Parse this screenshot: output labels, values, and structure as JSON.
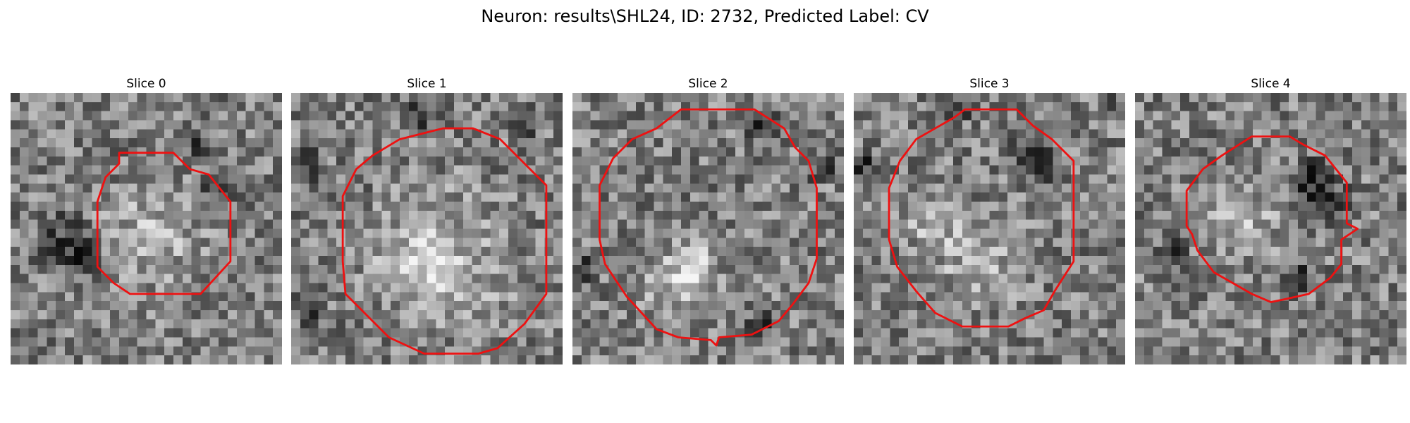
{
  "figure": {
    "suptitle": "Neuron: results\\SHL24, ID: 2732, Predicted Label: CV",
    "contour_color": "#ee1111",
    "colormap": "gray"
  },
  "panels": [
    {
      "title": "Slice 0",
      "seed": 11,
      "contour": [
        [
          0.4,
          0.22
        ],
        [
          0.6,
          0.22
        ],
        [
          0.66,
          0.28
        ],
        [
          0.73,
          0.3
        ],
        [
          0.81,
          0.4
        ],
        [
          0.81,
          0.62
        ],
        [
          0.7,
          0.74
        ],
        [
          0.44,
          0.74
        ],
        [
          0.38,
          0.7
        ],
        [
          0.32,
          0.64
        ],
        [
          0.32,
          0.4
        ],
        [
          0.35,
          0.31
        ],
        [
          0.4,
          0.26
        ]
      ],
      "dark": [
        [
          0.2,
          0.55,
          0.09
        ],
        [
          0.28,
          0.62,
          0.06
        ],
        [
          0.7,
          0.2,
          0.05
        ],
        [
          0.76,
          0.34,
          0.05
        ]
      ],
      "bright": [
        [
          0.52,
          0.52,
          0.18
        ]
      ]
    },
    {
      "title": "Slice 1",
      "seed": 23,
      "contour": [
        [
          0.4,
          0.17
        ],
        [
          0.56,
          0.13
        ],
        [
          0.67,
          0.13
        ],
        [
          0.77,
          0.17
        ],
        [
          0.87,
          0.27
        ],
        [
          0.94,
          0.34
        ],
        [
          0.94,
          0.74
        ],
        [
          0.86,
          0.85
        ],
        [
          0.76,
          0.94
        ],
        [
          0.69,
          0.96
        ],
        [
          0.49,
          0.96
        ],
        [
          0.36,
          0.9
        ],
        [
          0.28,
          0.82
        ],
        [
          0.2,
          0.74
        ],
        [
          0.19,
          0.62
        ],
        [
          0.19,
          0.38
        ],
        [
          0.24,
          0.28
        ],
        [
          0.3,
          0.23
        ]
      ],
      "dark": [
        [
          0.06,
          0.25,
          0.06
        ],
        [
          0.48,
          0.08,
          0.05
        ],
        [
          0.87,
          0.1,
          0.05
        ],
        [
          0.06,
          0.78,
          0.06
        ]
      ],
      "bright": [
        [
          0.56,
          0.6,
          0.26
        ],
        [
          0.46,
          0.64,
          0.12
        ]
      ]
    },
    {
      "title": "Slice 2",
      "seed": 37,
      "contour": [
        [
          0.4,
          0.06
        ],
        [
          0.67,
          0.06
        ],
        [
          0.78,
          0.13
        ],
        [
          0.82,
          0.2
        ],
        [
          0.87,
          0.25
        ],
        [
          0.9,
          0.35
        ],
        [
          0.9,
          0.61
        ],
        [
          0.87,
          0.7
        ],
        [
          0.81,
          0.78
        ],
        [
          0.76,
          0.84
        ],
        [
          0.66,
          0.89
        ],
        [
          0.54,
          0.9
        ],
        [
          0.53,
          0.93
        ],
        [
          0.51,
          0.91
        ],
        [
          0.39,
          0.9
        ],
        [
          0.31,
          0.87
        ],
        [
          0.2,
          0.75
        ],
        [
          0.12,
          0.63
        ],
        [
          0.1,
          0.54
        ],
        [
          0.1,
          0.34
        ],
        [
          0.15,
          0.24
        ],
        [
          0.22,
          0.17
        ],
        [
          0.31,
          0.13
        ]
      ],
      "dark": [
        [
          0.05,
          0.64,
          0.05
        ],
        [
          0.7,
          0.12,
          0.05
        ],
        [
          0.92,
          0.27,
          0.05
        ],
        [
          0.7,
          0.84,
          0.05
        ]
      ],
      "bright": [
        [
          0.4,
          0.7,
          0.16
        ],
        [
          0.44,
          0.64,
          0.08
        ]
      ]
    },
    {
      "title": "Slice 3",
      "seed": 53,
      "contour": [
        [
          0.41,
          0.06
        ],
        [
          0.6,
          0.06
        ],
        [
          0.66,
          0.12
        ],
        [
          0.73,
          0.17
        ],
        [
          0.81,
          0.25
        ],
        [
          0.81,
          0.62
        ],
        [
          0.74,
          0.73
        ],
        [
          0.7,
          0.8
        ],
        [
          0.63,
          0.83
        ],
        [
          0.57,
          0.86
        ],
        [
          0.4,
          0.86
        ],
        [
          0.3,
          0.81
        ],
        [
          0.23,
          0.73
        ],
        [
          0.16,
          0.64
        ],
        [
          0.13,
          0.54
        ],
        [
          0.13,
          0.35
        ],
        [
          0.17,
          0.25
        ],
        [
          0.23,
          0.17
        ],
        [
          0.3,
          0.13
        ],
        [
          0.37,
          0.09
        ]
      ],
      "dark": [
        [
          0.04,
          0.27,
          0.05
        ],
        [
          0.66,
          0.25,
          0.08
        ],
        [
          0.95,
          0.05,
          0.04
        ],
        [
          0.38,
          0.06,
          0.05
        ]
      ],
      "bright": [
        [
          0.45,
          0.62,
          0.16
        ],
        [
          0.28,
          0.48,
          0.1
        ]
      ]
    },
    {
      "title": "Slice 4",
      "seed": 71,
      "contour": [
        [
          0.32,
          0.23
        ],
        [
          0.43,
          0.16
        ],
        [
          0.57,
          0.16
        ],
        [
          0.62,
          0.19
        ],
        [
          0.7,
          0.23
        ],
        [
          0.78,
          0.33
        ],
        [
          0.78,
          0.48
        ],
        [
          0.82,
          0.5
        ],
        [
          0.76,
          0.54
        ],
        [
          0.76,
          0.63
        ],
        [
          0.72,
          0.68
        ],
        [
          0.64,
          0.74
        ],
        [
          0.55,
          0.76
        ],
        [
          0.5,
          0.77
        ],
        [
          0.43,
          0.74
        ],
        [
          0.36,
          0.7
        ],
        [
          0.29,
          0.66
        ],
        [
          0.23,
          0.58
        ],
        [
          0.21,
          0.52
        ],
        [
          0.19,
          0.49
        ],
        [
          0.19,
          0.36
        ],
        [
          0.25,
          0.28
        ]
      ],
      "dark": [
        [
          0.68,
          0.38,
          0.09
        ],
        [
          0.66,
          0.3,
          0.05
        ],
        [
          0.14,
          0.6,
          0.05
        ],
        [
          0.6,
          0.68,
          0.05
        ]
      ],
      "bright": [
        [
          0.4,
          0.48,
          0.14
        ]
      ]
    }
  ]
}
